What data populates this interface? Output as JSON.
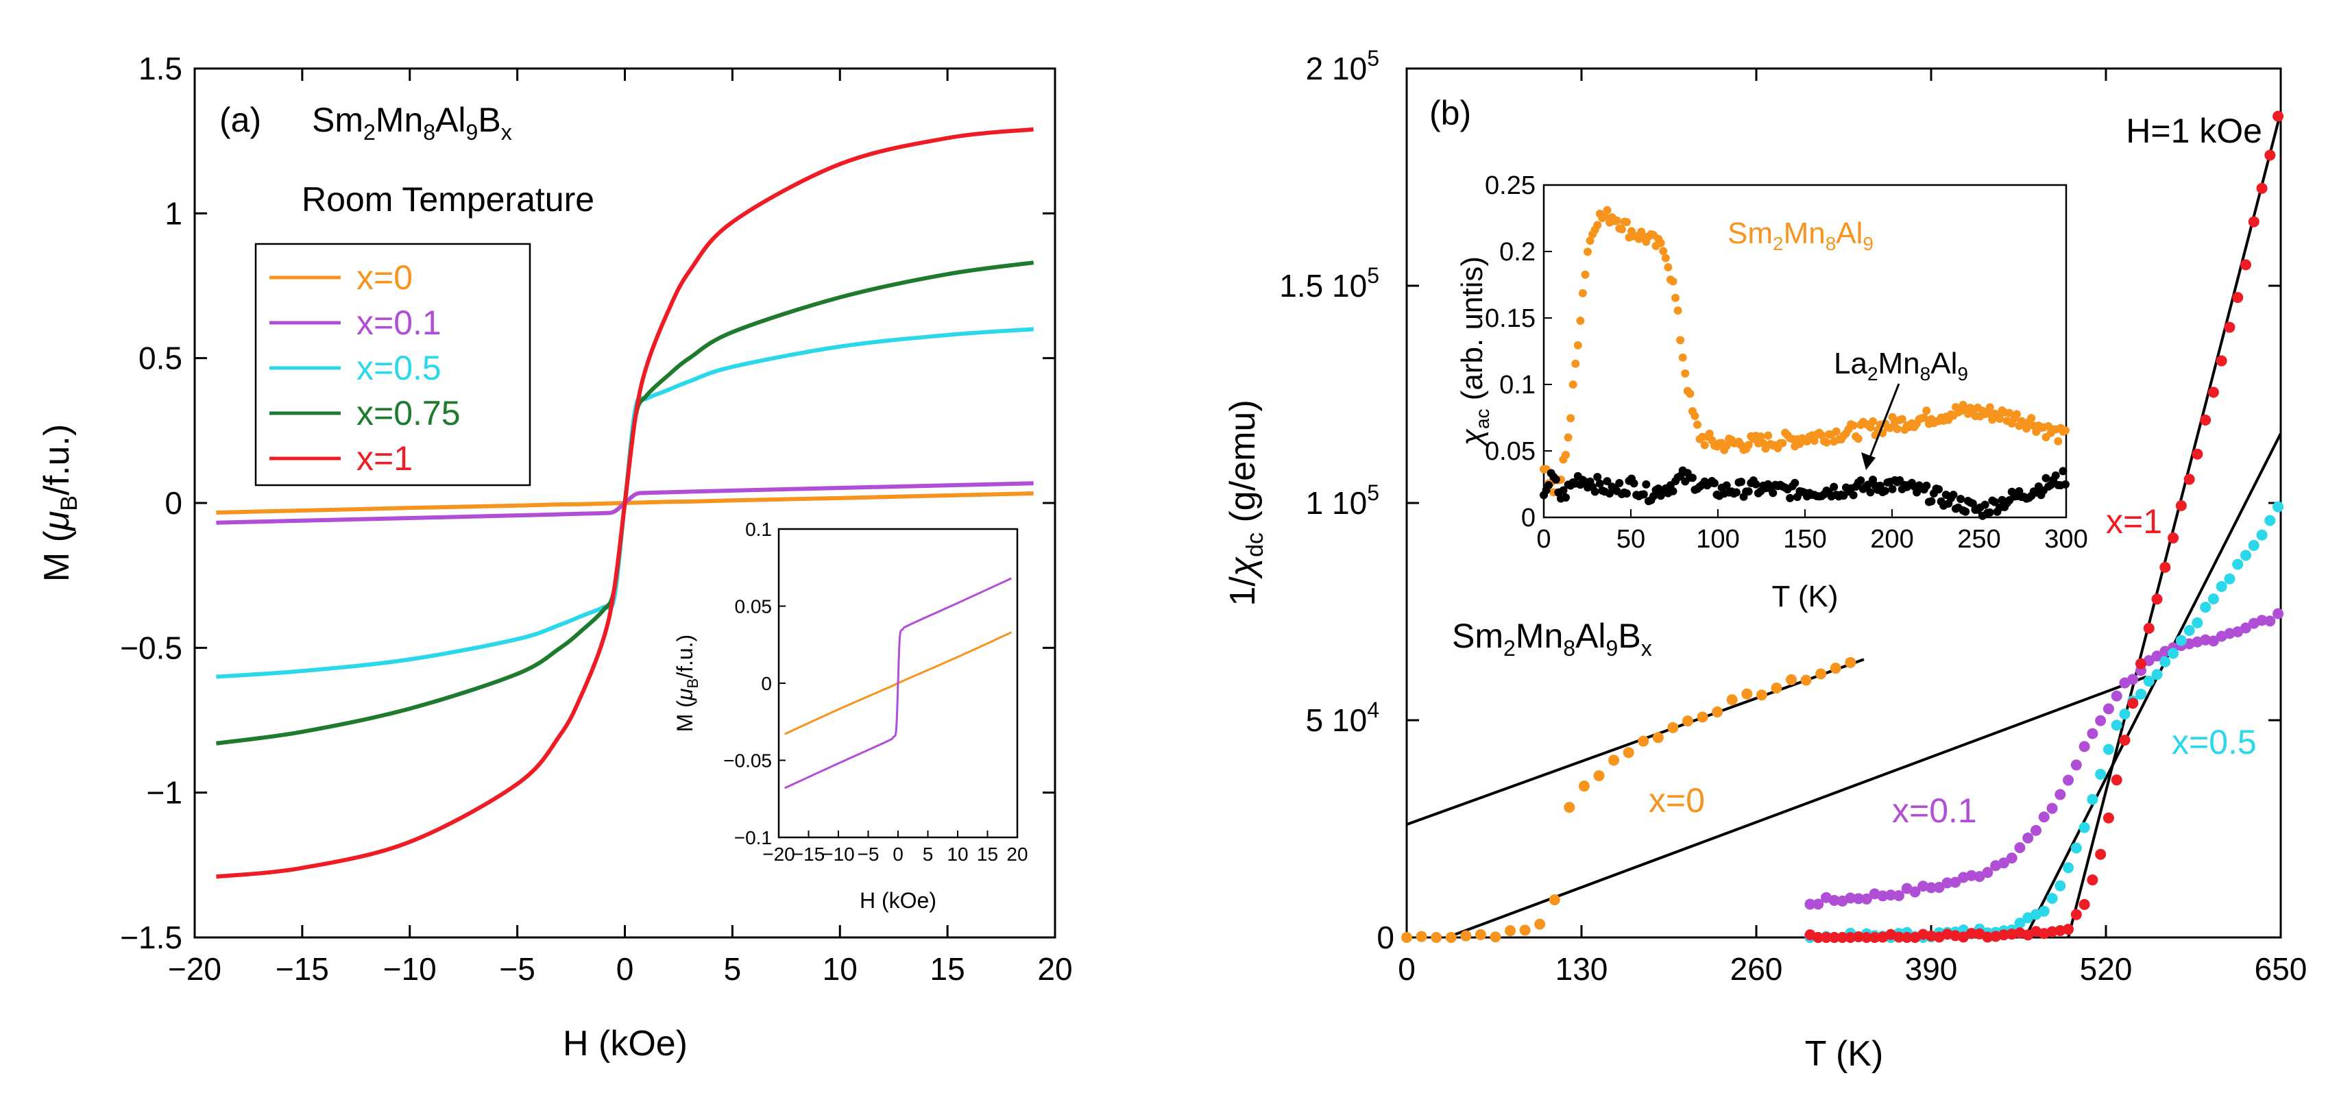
{
  "figure": {
    "panel_a": {
      "label": "(a)",
      "compound": {
        "base": "Sm",
        "s1": "2",
        "m1": "Mn",
        "s2": "8",
        "m2": "Al",
        "s3": "9",
        "m3": "B",
        "s4": "x"
      },
      "condition": "Room Temperature",
      "xlabel": "H (kOe)",
      "ylabel": {
        "main": "M (",
        "mu": "μ",
        "sub": "B",
        "rest": "/f.u.)"
      }
    },
    "panel_b": {
      "label": "(b)",
      "field": "H=1 kOe",
      "compound": {
        "base": "Sm",
        "s1": "2",
        "m1": "Mn",
        "s2": "8",
        "m2": "Al",
        "s3": "9",
        "m3": "B",
        "s4": "x"
      },
      "xlabel": "T (K)",
      "ylabel": {
        "main": "1/",
        "chi": "χ",
        "sub": "dc",
        "rest": " (g/emu)"
      },
      "ytick_labels": [
        "0",
        "5 10",
        "1 10",
        "1.5 10",
        "2 10"
      ],
      "ytick_exps": [
        "",
        "4",
        "5",
        "5",
        "5"
      ],
      "series_labels": [
        "x=0",
        "x=0.1",
        "x=0.5",
        "x=1"
      ],
      "inset": {
        "xlabel": "T (K)",
        "ylabel": {
          "chi": "χ",
          "sub": "ac",
          "rest": " (arb. untis)"
        },
        "sm_label": {
          "a": "Sm",
          "b": "2",
          "c": "Mn",
          "d": "8",
          "e": "Al",
          "f": "9"
        },
        "la_label": {
          "a": "La",
          "b": "2",
          "c": "Mn",
          "d": "8",
          "e": "Al",
          "f": "9"
        }
      }
    },
    "colors": {
      "x0": "#f7941d",
      "x01": "#b04fd6",
      "x05": "#2ad8ea",
      "x075": "#1e7a2c",
      "x1": "#ee1c25",
      "fit": "#000000",
      "la": "#000000"
    }
  },
  "chart_data": [
    {
      "type": "line",
      "title": "(a) Sm2Mn8Al9Bx Room Temperature",
      "xlabel": "H (kOe)",
      "ylabel": "M (μB/f.u.)",
      "xlim": [
        -20,
        20
      ],
      "ylim": [
        -1.5,
        1.5
      ],
      "xticks": [
        -20,
        -15,
        -10,
        -5,
        0,
        5,
        10,
        15,
        20
      ],
      "yticks": [
        -1.5,
        -1,
        -0.5,
        0,
        0.5,
        1,
        1.5
      ],
      "legend_position": "upper-left",
      "x": [
        -19,
        -15,
        -10,
        -5,
        -3,
        -2,
        -1,
        -0.5,
        0,
        0.5,
        1,
        2,
        3,
        5,
        10,
        15,
        19
      ],
      "series": [
        {
          "name": "x=0",
          "color": "#f7941d",
          "values": [
            -0.033,
            -0.026,
            -0.017,
            -0.009,
            -0.005,
            -0.004,
            -0.002,
            -0.001,
            0,
            0.001,
            0.002,
            0.004,
            0.005,
            0.009,
            0.017,
            0.026,
            0.033
          ]
        },
        {
          "name": "x=0.1",
          "color": "#b04fd6",
          "values": [
            -0.068,
            -0.061,
            -0.052,
            -0.043,
            -0.039,
            -0.037,
            -0.035,
            -0.03,
            0,
            0.03,
            0.035,
            0.037,
            0.039,
            0.043,
            0.052,
            0.061,
            0.068
          ]
        },
        {
          "name": "x=0.5",
          "color": "#2ad8ea",
          "values": [
            -0.6,
            -0.58,
            -0.54,
            -0.47,
            -0.42,
            -0.39,
            -0.36,
            -0.33,
            0,
            0.33,
            0.36,
            0.39,
            0.42,
            0.47,
            0.54,
            0.58,
            0.6
          ]
        },
        {
          "name": "x=0.75",
          "color": "#1e7a2c",
          "values": [
            -0.83,
            -0.79,
            -0.71,
            -0.59,
            -0.5,
            -0.44,
            -0.37,
            -0.3,
            0,
            0.3,
            0.37,
            0.44,
            0.5,
            0.59,
            0.71,
            0.79,
            0.83
          ]
        },
        {
          "name": "x=1",
          "color": "#ee1c25",
          "values": [
            -1.29,
            -1.26,
            -1.17,
            -0.97,
            -0.8,
            -0.66,
            -0.47,
            -0.3,
            0,
            0.3,
            0.47,
            0.66,
            0.8,
            0.97,
            1.17,
            1.26,
            1.29
          ]
        }
      ],
      "inset": {
        "type": "line",
        "xlabel": "H (kOe)",
        "ylabel": "M (μB/f.u.)",
        "xlim": [
          -20,
          20
        ],
        "ylim": [
          -0.1,
          0.1
        ],
        "xticks": [
          -20,
          -15,
          -10,
          -5,
          0,
          5,
          10,
          15,
          20
        ],
        "yticks": [
          -0.1,
          -0.05,
          0,
          0.05,
          0.1
        ],
        "x": [
          -19,
          -10,
          -2,
          -0.8,
          -0.3,
          0,
          0.3,
          0.8,
          2,
          10,
          19
        ],
        "series": [
          {
            "name": "x=0",
            "color": "#f7941d",
            "values": [
              -0.033,
              -0.017,
              -0.0035,
              -0.0014,
              -0.0005,
              0,
              0.0005,
              0.0014,
              0.0035,
              0.017,
              0.033
            ]
          },
          {
            "name": "x=0.1",
            "color": "#b04fd6",
            "values": [
              -0.068,
              -0.052,
              -0.038,
              -0.035,
              -0.03,
              0,
              0.03,
              0.035,
              0.038,
              0.052,
              0.068
            ]
          }
        ]
      }
    },
    {
      "type": "scatter",
      "title": "(b) H=1 kOe",
      "xlabel": "T (K)",
      "ylabel": "1/χdc (g/emu)",
      "xlim": [
        0,
        650
      ],
      "ylim": [
        0,
        200000
      ],
      "xticks": [
        0,
        130,
        260,
        390,
        520,
        650
      ],
      "yticks": [
        0,
        50000,
        100000,
        150000,
        200000
      ],
      "series": [
        {
          "name": "x=0",
          "color": "#f7941d",
          "x": [
            0,
            20,
            40,
            60,
            80,
            95,
            105,
            110,
            115,
            120,
            130,
            150,
            170,
            190,
            210,
            230,
            250,
            270,
            290,
            310,
            330,
            340
          ],
          "y": [
            0,
            200,
            400,
            700,
            1000,
            2000,
            5000,
            9000,
            12000,
            29000,
            34000,
            40000,
            44000,
            47000,
            50000,
            52500,
            55000,
            57000,
            59000,
            61000,
            63000,
            64000
          ]
        },
        {
          "name": "x=0.1",
          "color": "#b04fd6",
          "x": [
            300,
            330,
            360,
            390,
            410,
            430,
            450,
            470,
            490,
            510,
            530,
            550,
            570,
            590,
            610,
            630,
            650
          ],
          "y": [
            8000,
            9000,
            10000,
            11500,
            13000,
            15000,
            19000,
            25000,
            35000,
            47000,
            57000,
            63000,
            66000,
            68000,
            70000,
            72000,
            74000
          ]
        },
        {
          "name": "x=0.5",
          "color": "#2ad8ea",
          "x": [
            300,
            350,
            400,
            430,
            450,
            470,
            480,
            490,
            500,
            510,
            520,
            530,
            540,
            550,
            560,
            570,
            580,
            590,
            600,
            610,
            620,
            630,
            640,
            650
          ],
          "y": [
            0,
            300,
            800,
            1500,
            2500,
            5000,
            9000,
            15000,
            22000,
            32000,
            42000,
            50000,
            55000,
            58000,
            62000,
            66000,
            70000,
            74000,
            78000,
            82000,
            86000,
            90000,
            95000,
            101000
          ]
        },
        {
          "name": "x=1",
          "color": "#ee1c25",
          "x": [
            300,
            350,
            400,
            450,
            480,
            495,
            505,
            515,
            525,
            530,
            535,
            540,
            545,
            550,
            555,
            560,
            570,
            580,
            590,
            600,
            610,
            620,
            630,
            640,
            650
          ],
          "y": [
            0,
            0,
            100,
            300,
            800,
            3000,
            8000,
            18000,
            31000,
            39000,
            47000,
            54000,
            61000,
            68000,
            75000,
            81000,
            92000,
            103000,
            114000,
            126000,
            138000,
            150000,
            164000,
            178000,
            192000
          ]
        }
      ],
      "fit_lines": [
        {
          "series": "x=0",
          "x": [
            0,
            340
          ],
          "y": [
            26000,
            64000
          ]
        },
        {
          "series": "x=0.1",
          "x": [
            30,
            550
          ],
          "y": [
            0,
            60000
          ]
        },
        {
          "series": "x=0.5",
          "x": [
            460,
            650
          ],
          "y": [
            0,
            116000
          ]
        },
        {
          "series": "x=1",
          "x": [
            492,
            650
          ],
          "y": [
            0,
            190000
          ]
        }
      ],
      "inset": {
        "type": "scatter",
        "xlabel": "T (K)",
        "ylabel": "χac (arb. untis)",
        "xlim": [
          0,
          300
        ],
        "ylim": [
          0,
          0.25
        ],
        "xticks": [
          0,
          50,
          100,
          150,
          200,
          250,
          300
        ],
        "yticks": [
          0,
          0.05,
          0.1,
          0.15,
          0.2,
          0.25
        ],
        "series": [
          {
            "name": "Sm2Mn8Al9",
            "color": "#f7941d",
            "x": [
              0,
              5,
              10,
              15,
              20,
              25,
              30,
              40,
              50,
              60,
              70,
              75,
              80,
              85,
              90,
              100,
              120,
              140,
              160,
              180,
              200,
              220,
              240,
              260,
              280,
              290,
              300
            ],
            "y": [
              0.04,
              0.02,
              0.03,
              0.07,
              0.14,
              0.2,
              0.225,
              0.227,
              0.215,
              0.21,
              0.2,
              0.17,
              0.12,
              0.08,
              0.06,
              0.055,
              0.056,
              0.058,
              0.062,
              0.065,
              0.07,
              0.075,
              0.08,
              0.078,
              0.072,
              0.065,
              0.06
            ]
          },
          {
            "name": "La2Mn8Al9",
            "color": "#000000",
            "x": [
              0,
              5,
              10,
              20,
              30,
              40,
              50,
              60,
              70,
              80,
              90,
              100,
              120,
              140,
              160,
              180,
              200,
              220,
              240,
              250,
              260,
              270,
              280,
              290,
              300
            ],
            "y": [
              0.02,
              0.03,
              0.015,
              0.03,
              0.025,
              0.02,
              0.025,
              0.018,
              0.022,
              0.03,
              0.025,
              0.02,
              0.022,
              0.02,
              0.02,
              0.022,
              0.025,
              0.018,
              0.01,
              0.005,
              0.01,
              0.015,
              0.02,
              0.025,
              0.03
            ]
          }
        ],
        "annotations": [
          {
            "text": "La2Mn8Al9",
            "arrow_to": [
              175,
              0.015
            ]
          }
        ]
      }
    }
  ]
}
